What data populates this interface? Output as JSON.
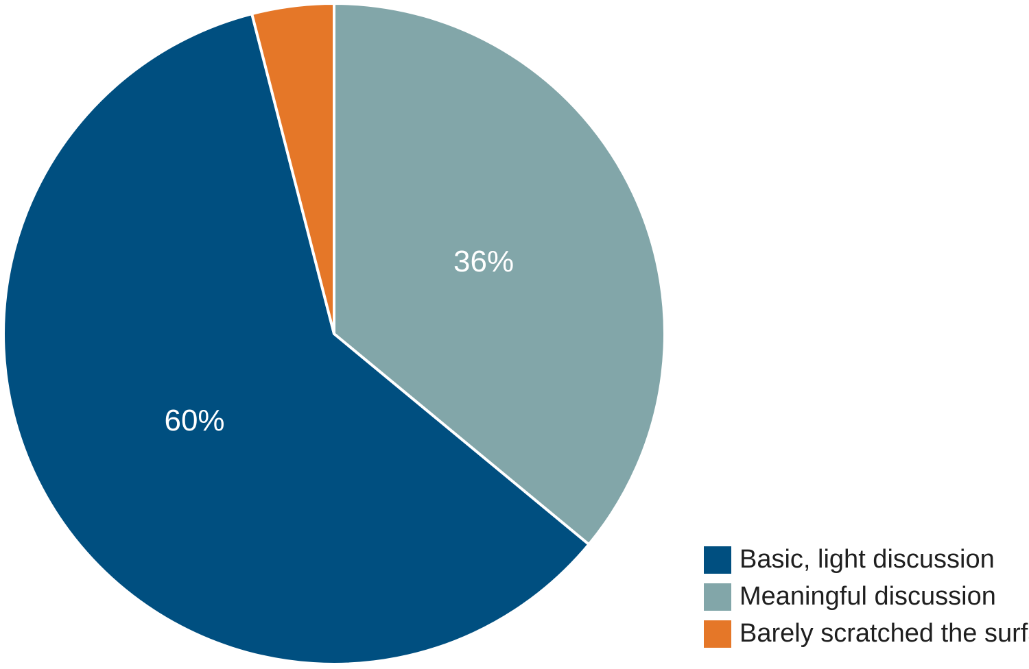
{
  "chart_data": {
    "type": "pie",
    "title": "",
    "slices": [
      {
        "name": "Meaningful discussion",
        "value": 36,
        "label": "36%",
        "color": "#82A6A9"
      },
      {
        "name": "Basic, light discussion",
        "value": 60,
        "label": "60%",
        "color": "#004F80"
      },
      {
        "name": "Barely scratched the surface",
        "value": 4,
        "label": "",
        "color": "#E57728"
      }
    ],
    "legend": {
      "placement": "bottom-right",
      "entries": [
        {
          "name": "Basic, light discussion",
          "color": "#004F80"
        },
        {
          "name": "Meaningful discussion",
          "color": "#82A6A9"
        },
        {
          "name": "Barely scratched the surface",
          "color": "#E57728"
        }
      ]
    }
  }
}
